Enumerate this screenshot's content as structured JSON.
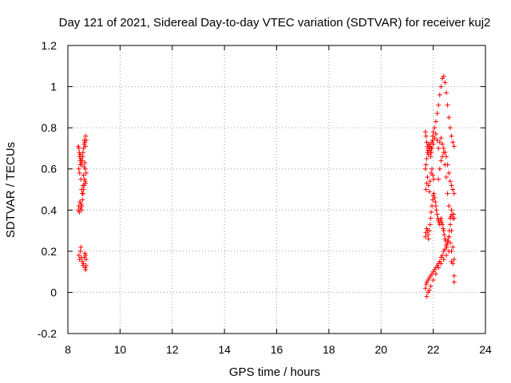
{
  "chart_data": {
    "type": "scatter",
    "title": "Day 121 of 2021, Sidereal Day-to-day VTEC variation (SDTVAR) for receiver kuj2",
    "xlabel": "GPS time / hours",
    "ylabel": "SDTVAR / TECUs",
    "xlim": [
      8,
      24
    ],
    "ylim": [
      -0.2,
      1.2
    ],
    "xticks": [
      8,
      10,
      12,
      14,
      16,
      18,
      20,
      22,
      24
    ],
    "yticks": [
      -0.2,
      0,
      0.2,
      0.4,
      0.6,
      0.8,
      1,
      1.2
    ],
    "ytick_labels": [
      "-0.2",
      "0",
      "0.2",
      "0.4",
      "0.6",
      "0.8",
      "1",
      "1.2"
    ],
    "grid": true,
    "marker": "+",
    "series": [
      {
        "name": "SDTVAR",
        "color": "#ff0000",
        "x": [
          8.4,
          8.42,
          8.44,
          8.45,
          8.47,
          8.48,
          8.5,
          8.52,
          8.53,
          8.55,
          8.57,
          8.58,
          8.6,
          8.62,
          8.63,
          8.65,
          8.67,
          8.68,
          8.7,
          8.4,
          8.42,
          8.44,
          8.46,
          8.48,
          8.5,
          8.52,
          8.54,
          8.56,
          8.58,
          8.6,
          8.62,
          8.64,
          8.66,
          8.68,
          8.42,
          8.45,
          8.48,
          8.5,
          8.53,
          8.55,
          8.58,
          8.6,
          8.62,
          8.65,
          8.67,
          8.7,
          8.42,
          8.45,
          8.48,
          8.5,
          8.52,
          8.55,
          8.58,
          8.6,
          8.63,
          8.65,
          8.68,
          8.7,
          8.66,
          8.68,
          8.7,
          21.7,
          21.72,
          21.75,
          21.78,
          21.8,
          21.82,
          21.85,
          21.88,
          21.9,
          21.92,
          21.95,
          21.98,
          22.0,
          22.05,
          22.1,
          22.15,
          22.2,
          22.25,
          22.3,
          22.35,
          22.4,
          22.45,
          22.5,
          22.55,
          22.6,
          22.65,
          22.7,
          22.75,
          22.8,
          21.7,
          21.72,
          21.75,
          21.78,
          21.8,
          21.82,
          21.85,
          21.88,
          21.9,
          21.92,
          21.95,
          21.98,
          22.0,
          22.05,
          22.1,
          22.15,
          22.2,
          22.25,
          22.3,
          22.35,
          22.4,
          22.45,
          22.5,
          22.55,
          22.6,
          22.65,
          22.7,
          22.75,
          22.8,
          21.7,
          21.72,
          21.75,
          21.78,
          21.8,
          21.82,
          21.85,
          21.88,
          21.9,
          21.92,
          21.95,
          21.98,
          22.0,
          22.02,
          22.05,
          22.08,
          22.1,
          22.12,
          22.15,
          22.18,
          22.2,
          22.22,
          22.25,
          22.28,
          22.3,
          22.32,
          22.35,
          22.38,
          22.4,
          22.42,
          22.45,
          22.48,
          22.5,
          22.52,
          22.55,
          22.58,
          22.6,
          22.62,
          22.65,
          22.68,
          22.7,
          22.72,
          22.75,
          22.78,
          22.8,
          21.7,
          21.73,
          21.76,
          21.8,
          21.85,
          21.9,
          21.95,
          22.0,
          22.05,
          22.1,
          22.15,
          22.2,
          22.25,
          22.3,
          22.35,
          22.4,
          22.45,
          22.5,
          22.55,
          22.6,
          22.65,
          22.7,
          22.75,
          22.8,
          21.75,
          21.8,
          21.85,
          21.9,
          22.0,
          22.1,
          22.2,
          22.3,
          22.4,
          22.5,
          22.6,
          22.7,
          22.8,
          22.2,
          22.25,
          22.3,
          22.35,
          22.4,
          22.45,
          22.5,
          22.55,
          22.6,
          22.65,
          22.7,
          22.75,
          22.8,
          21.72,
          21.75,
          21.78,
          21.82,
          21.85,
          21.88,
          21.92,
          21.95,
          21.98,
          22.02
        ],
        "y": [
          0.71,
          0.7,
          0.68,
          0.66,
          0.64,
          0.67,
          0.65,
          0.63,
          0.62,
          0.64,
          0.66,
          0.68,
          0.7,
          0.72,
          0.74,
          0.73,
          0.71,
          0.76,
          0.74,
          0.4,
          0.42,
          0.39,
          0.44,
          0.41,
          0.43,
          0.4,
          0.42,
          0.45,
          0.48,
          0.5,
          0.52,
          0.55,
          0.54,
          0.53,
          0.6,
          0.58,
          0.62,
          0.55,
          0.5,
          0.48,
          0.52,
          0.57,
          0.61,
          0.63,
          0.6,
          0.58,
          0.18,
          0.16,
          0.2,
          0.22,
          0.17,
          0.15,
          0.13,
          0.14,
          0.17,
          0.19,
          0.18,
          0.16,
          0.12,
          0.11,
          0.13,
          0.6,
          0.62,
          0.65,
          0.68,
          0.7,
          0.72,
          0.69,
          0.71,
          0.68,
          0.7,
          0.73,
          0.76,
          0.78,
          0.8,
          0.83,
          0.87,
          0.91,
          0.96,
          1.0,
          1.04,
          1.05,
          1.02,
          0.97,
          0.91,
          0.85,
          0.8,
          0.76,
          0.73,
          0.71,
          0.78,
          0.76,
          0.73,
          0.71,
          0.69,
          0.67,
          0.7,
          0.72,
          0.66,
          0.68,
          0.7,
          0.74,
          0.72,
          0.75,
          0.77,
          0.74,
          0.7,
          0.73,
          0.75,
          0.72,
          0.7,
          0.68,
          0.66,
          0.62,
          0.58,
          0.54,
          0.52,
          0.5,
          0.48,
          0.27,
          0.29,
          0.31,
          0.3,
          0.28,
          0.26,
          0.3,
          0.33,
          0.36,
          0.39,
          0.42,
          0.45,
          0.47,
          0.48,
          0.46,
          0.44,
          0.42,
          0.4,
          0.38,
          0.36,
          0.35,
          0.34,
          0.33,
          0.35,
          0.36,
          0.34,
          0.33,
          0.31,
          0.3,
          0.28,
          0.26,
          0.25,
          0.23,
          0.22,
          0.24,
          0.25,
          0.27,
          0.3,
          0.33,
          0.37,
          0.4,
          0.38,
          0.36,
          0.38,
          0.36,
          0.02,
          0.04,
          0.05,
          0.06,
          0.07,
          0.08,
          0.09,
          0.1,
          0.11,
          0.12,
          0.13,
          0.14,
          0.15,
          0.17,
          0.18,
          0.2,
          0.21,
          0.23,
          0.25,
          0.27,
          0.24,
          0.2,
          0.14,
          0.05,
          -0.02,
          0.0,
          0.01,
          0.03,
          0.06,
          0.09,
          0.12,
          0.14,
          0.16,
          0.18,
          0.2,
          0.15,
          0.08,
          0.55,
          0.6,
          0.64,
          0.66,
          0.68,
          0.62,
          0.56,
          0.48,
          0.42,
          0.36,
          0.3,
          0.22,
          0.16,
          0.5,
          0.53,
          0.56,
          0.52,
          0.49,
          0.54,
          0.58,
          0.6,
          0.57,
          0.55
        ]
      }
    ]
  }
}
